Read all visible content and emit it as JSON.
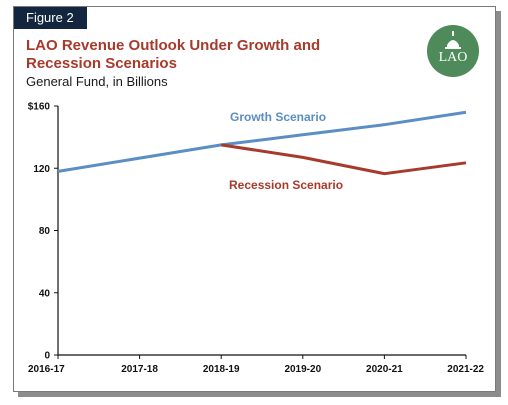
{
  "figure_label": "Figure 2",
  "logo_text": "LAO",
  "chart_data": {
    "type": "line",
    "title": "LAO Revenue Outlook Under Growth and Recession Scenarios",
    "subtitle": "General Fund, in Billions",
    "xlabel": "",
    "ylabel": "",
    "categories": [
      "2016-17",
      "2017-18",
      "2018-19",
      "2019-20",
      "2020-21",
      "2021-22"
    ],
    "y_ticks": [
      "0",
      "40",
      "80",
      "120",
      "$160"
    ],
    "y_tick_values": [
      0,
      40,
      80,
      120,
      160
    ],
    "ylim": [
      0,
      160
    ],
    "grid": false,
    "series": [
      {
        "name": "Growth Scenario",
        "color": "#5b8ec4",
        "values": [
          118,
          126.5,
          135,
          141.5,
          148,
          156
        ]
      },
      {
        "name": "Recession Scenario",
        "color": "#a83a2c",
        "values": [
          null,
          null,
          135,
          127,
          116.5,
          123.5
        ]
      }
    ]
  }
}
